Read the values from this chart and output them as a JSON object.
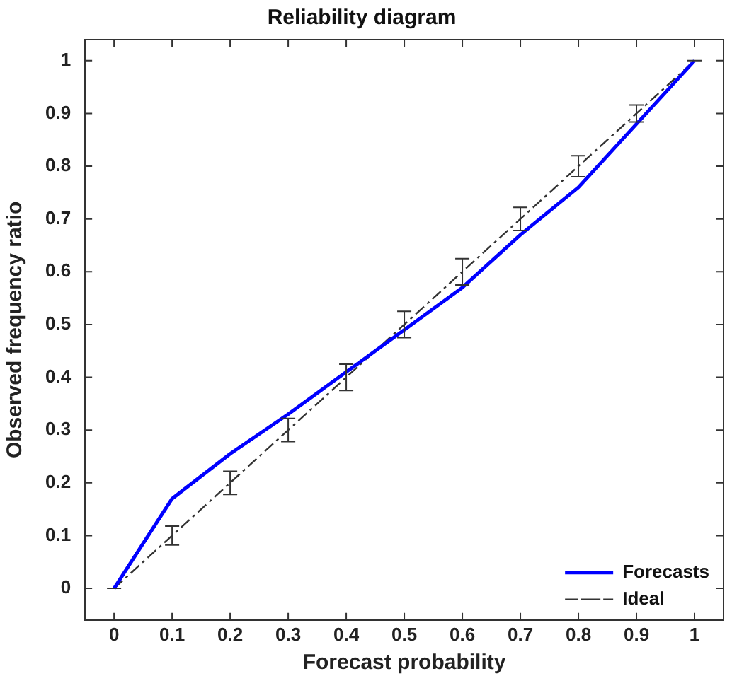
{
  "chart_data": {
    "type": "line",
    "title": "Reliability diagram",
    "xlabel": "Forecast probability",
    "ylabel": "Observed frequency ratio",
    "x": [
      0,
      0.1,
      0.2,
      0.3,
      0.4,
      0.5,
      0.6,
      0.7,
      0.8,
      0.9,
      1
    ],
    "series": [
      {
        "name": "Forecasts",
        "color": "#0000ff",
        "values": [
          0,
          0.17,
          0.255,
          0.33,
          0.41,
          0.49,
          0.57,
          0.67,
          0.76,
          0.88,
          1
        ],
        "line_style": "solid"
      },
      {
        "name": "Ideal",
        "color": "#333333",
        "values": [
          0,
          0.1,
          0.2,
          0.3,
          0.4,
          0.5,
          0.6,
          0.7,
          0.8,
          0.9,
          1
        ],
        "line_style": "dashdot",
        "errors": [
          0,
          0.018,
          0.022,
          0.022,
          0.025,
          0.025,
          0.025,
          0.022,
          0.02,
          0.016,
          0
        ]
      }
    ],
    "xlim": [
      -0.05,
      1.05
    ],
    "ylim": [
      -0.06,
      1.04
    ],
    "xticks": [
      0,
      0.1,
      0.2,
      0.3,
      0.4,
      0.5,
      0.6,
      0.7,
      0.8,
      0.9,
      1
    ],
    "yticks": [
      0,
      0.1,
      0.2,
      0.3,
      0.4,
      0.5,
      0.6,
      0.7,
      0.8,
      0.9,
      1
    ],
    "grid": false,
    "legend": "bottom right",
    "marker": "none"
  }
}
